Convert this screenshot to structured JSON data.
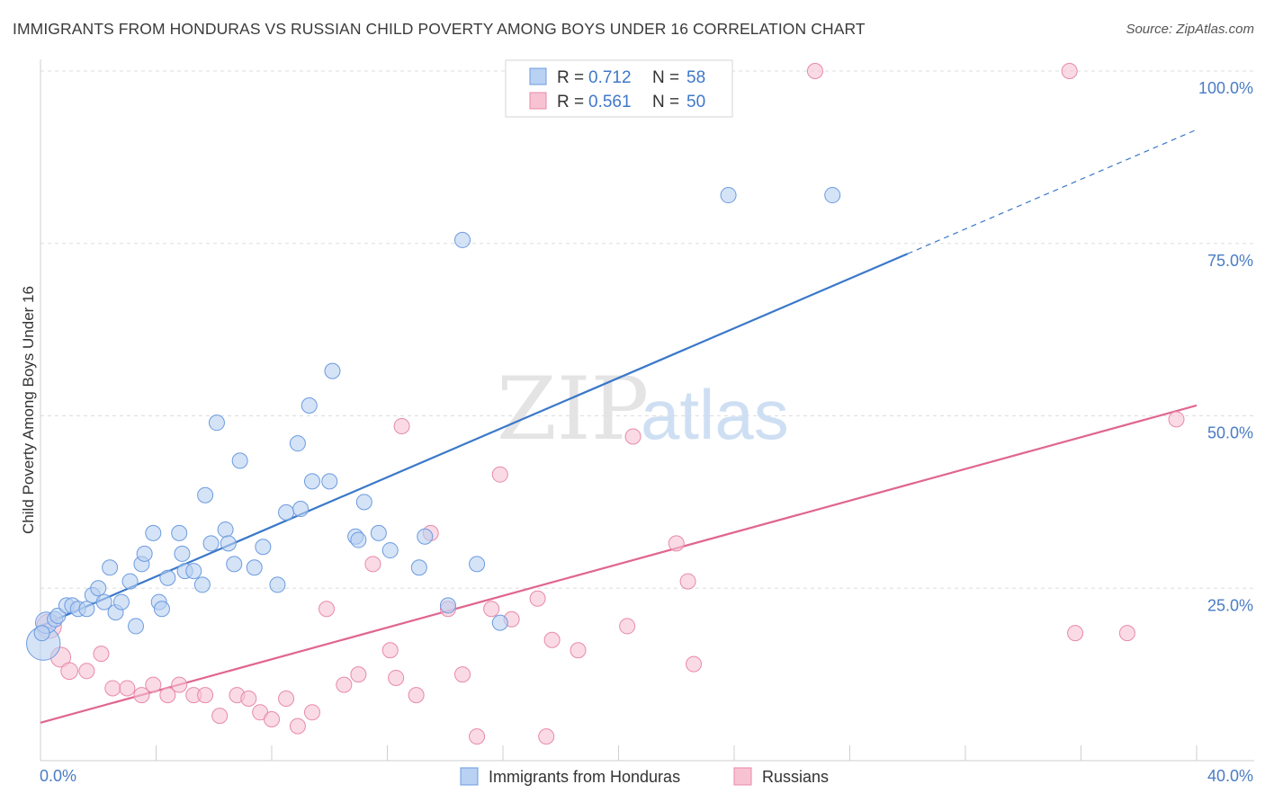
{
  "title": "IMMIGRANTS FROM HONDURAS VS RUSSIAN CHILD POVERTY AMONG BOYS UNDER 16 CORRELATION CHART",
  "source": "Source: ZipAtlas.com",
  "watermark": {
    "part1": "ZIP",
    "part2": "atlas"
  },
  "colors": {
    "blue": "#3a78c9",
    "blue_fill": "#b9d1f2",
    "pink": "#e0668f",
    "pink_fill": "#f7c3d3",
    "axis_text": "#4a7cc4"
  },
  "legend": {
    "rows": [
      {
        "r_label": "R =",
        "r_value": "0.712",
        "n_label": "N =",
        "n_value": "58"
      },
      {
        "r_label": "R =",
        "r_value": "0.561",
        "n_label": "N =",
        "n_value": "50"
      }
    ]
  },
  "bottom_legend": {
    "items": [
      "Immigrants from Honduras",
      "Russians"
    ]
  },
  "chart_data": {
    "type": "scatter",
    "title": "IMMIGRANTS FROM HONDURAS VS RUSSIAN CHILD POVERTY AMONG BOYS UNDER 16 CORRELATION CHART",
    "xlabel": "",
    "ylabel": "Child Poverty Among Boys Under 16",
    "xlim": [
      0,
      40
    ],
    "ylim": [
      0,
      100
    ],
    "x_tick_labels": [
      "0.0%",
      "40.0%"
    ],
    "y_tick_labels": [
      "25.0%",
      "50.0%",
      "75.0%",
      "100.0%"
    ],
    "y_tick_values": [
      25,
      50,
      75,
      100
    ],
    "grid": true,
    "series": [
      {
        "name": "Immigrants from Honduras",
        "r": 0.712,
        "n": 58,
        "trend": {
          "x0": 0,
          "y0": 19.5,
          "x1": 30,
          "y1": 73.5,
          "dashed_to_x": 40,
          "dashed_to_y": 91.5
        },
        "points": [
          [
            0.1,
            17,
            2.2
          ],
          [
            0.2,
            20,
            1.4
          ],
          [
            0.5,
            20.5,
            1
          ],
          [
            0.6,
            21,
            1
          ],
          [
            0.9,
            22.5,
            1
          ],
          [
            1.1,
            22.5,
            1
          ],
          [
            1.3,
            22,
            1
          ],
          [
            1.6,
            22,
            1
          ],
          [
            1.8,
            24,
            1
          ],
          [
            2.0,
            25,
            1
          ],
          [
            2.2,
            23,
            1
          ],
          [
            2.4,
            28,
            1
          ],
          [
            2.6,
            21.5,
            1
          ],
          [
            2.8,
            23,
            1
          ],
          [
            3.1,
            26,
            1
          ],
          [
            3.3,
            19.5,
            1
          ],
          [
            3.5,
            28.5,
            1
          ],
          [
            3.6,
            30,
            1
          ],
          [
            3.9,
            33,
            1
          ],
          [
            4.1,
            23,
            1
          ],
          [
            4.2,
            22,
            1
          ],
          [
            4.4,
            26.5,
            1
          ],
          [
            4.8,
            33,
            1
          ],
          [
            4.9,
            30,
            1
          ],
          [
            5.0,
            27.5,
            1
          ],
          [
            5.3,
            27.5,
            1
          ],
          [
            5.6,
            25.5,
            1
          ],
          [
            5.7,
            38.5,
            1
          ],
          [
            5.9,
            31.5,
            1
          ],
          [
            6.1,
            49,
            1
          ],
          [
            6.4,
            33.5,
            1
          ],
          [
            6.5,
            31.5,
            1
          ],
          [
            6.7,
            28.5,
            1
          ],
          [
            6.9,
            43.5,
            1
          ],
          [
            7.4,
            28,
            1
          ],
          [
            7.7,
            31,
            1
          ],
          [
            8.2,
            25.5,
            1
          ],
          [
            8.5,
            36,
            1
          ],
          [
            8.9,
            46,
            1
          ],
          [
            9.0,
            36.5,
            1
          ],
          [
            9.3,
            51.5,
            1
          ],
          [
            9.4,
            40.5,
            1
          ],
          [
            10.0,
            40.5,
            1
          ],
          [
            10.1,
            56.5,
            1
          ],
          [
            10.9,
            32.5,
            1
          ],
          [
            11.0,
            32,
            1
          ],
          [
            11.2,
            37.5,
            1
          ],
          [
            11.7,
            33,
            1
          ],
          [
            12.1,
            30.5,
            1
          ],
          [
            13.1,
            28,
            1
          ],
          [
            13.3,
            32.5,
            1
          ],
          [
            14.1,
            22.5,
            1
          ],
          [
            14.6,
            75.5,
            1
          ],
          [
            15.1,
            28.5,
            1
          ],
          [
            15.9,
            20,
            1
          ],
          [
            23.8,
            82,
            1
          ],
          [
            27.4,
            82,
            1
          ],
          [
            0.05,
            18.5,
            1
          ]
        ]
      },
      {
        "name": "Russians",
        "r": 0.561,
        "n": 50,
        "trend": {
          "x0": 0,
          "y0": 5.5,
          "x1": 40,
          "y1": 51.5
        },
        "points": [
          [
            0.3,
            19.5,
            1.6
          ],
          [
            0.7,
            15,
            1.3
          ],
          [
            1.0,
            13,
            1.1
          ],
          [
            1.6,
            13,
            1
          ],
          [
            2.1,
            15.5,
            1
          ],
          [
            2.5,
            10.5,
            1
          ],
          [
            3.0,
            10.5,
            1
          ],
          [
            3.5,
            9.5,
            1
          ],
          [
            3.9,
            11,
            1
          ],
          [
            4.4,
            9.5,
            1
          ],
          [
            4.8,
            11,
            1
          ],
          [
            5.3,
            9.5,
            1
          ],
          [
            5.7,
            9.5,
            1
          ],
          [
            6.2,
            6.5,
            1
          ],
          [
            6.8,
            9.5,
            1
          ],
          [
            7.2,
            9,
            1
          ],
          [
            7.6,
            7,
            1
          ],
          [
            8.0,
            6,
            1
          ],
          [
            8.5,
            9,
            1
          ],
          [
            8.9,
            5,
            1
          ],
          [
            9.4,
            7,
            1
          ],
          [
            9.9,
            22,
            1
          ],
          [
            10.5,
            11,
            1
          ],
          [
            11.0,
            12.5,
            1
          ],
          [
            11.5,
            28.5,
            1
          ],
          [
            12.1,
            16,
            1
          ],
          [
            12.3,
            12,
            1
          ],
          [
            12.5,
            48.5,
            1
          ],
          [
            13.0,
            9.5,
            1
          ],
          [
            13.5,
            33,
            1
          ],
          [
            14.1,
            22,
            1
          ],
          [
            14.6,
            12.5,
            1
          ],
          [
            15.1,
            3.5,
            1
          ],
          [
            15.6,
            22,
            1
          ],
          [
            15.9,
            41.5,
            1
          ],
          [
            16.3,
            20.5,
            1
          ],
          [
            17.2,
            23.5,
            1
          ],
          [
            17.5,
            3.5,
            1
          ],
          [
            17.7,
            17.5,
            1
          ],
          [
            18.6,
            16,
            1
          ],
          [
            20.3,
            19.5,
            1
          ],
          [
            20.5,
            47,
            1
          ],
          [
            22.0,
            31.5,
            1
          ],
          [
            22.4,
            26,
            1
          ],
          [
            22.6,
            14,
            1
          ],
          [
            26.8,
            100,
            1
          ],
          [
            35.6,
            100,
            1
          ],
          [
            35.8,
            18.5,
            1
          ],
          [
            37.6,
            18.5,
            1
          ],
          [
            39.3,
            49.5,
            1
          ]
        ]
      }
    ]
  }
}
